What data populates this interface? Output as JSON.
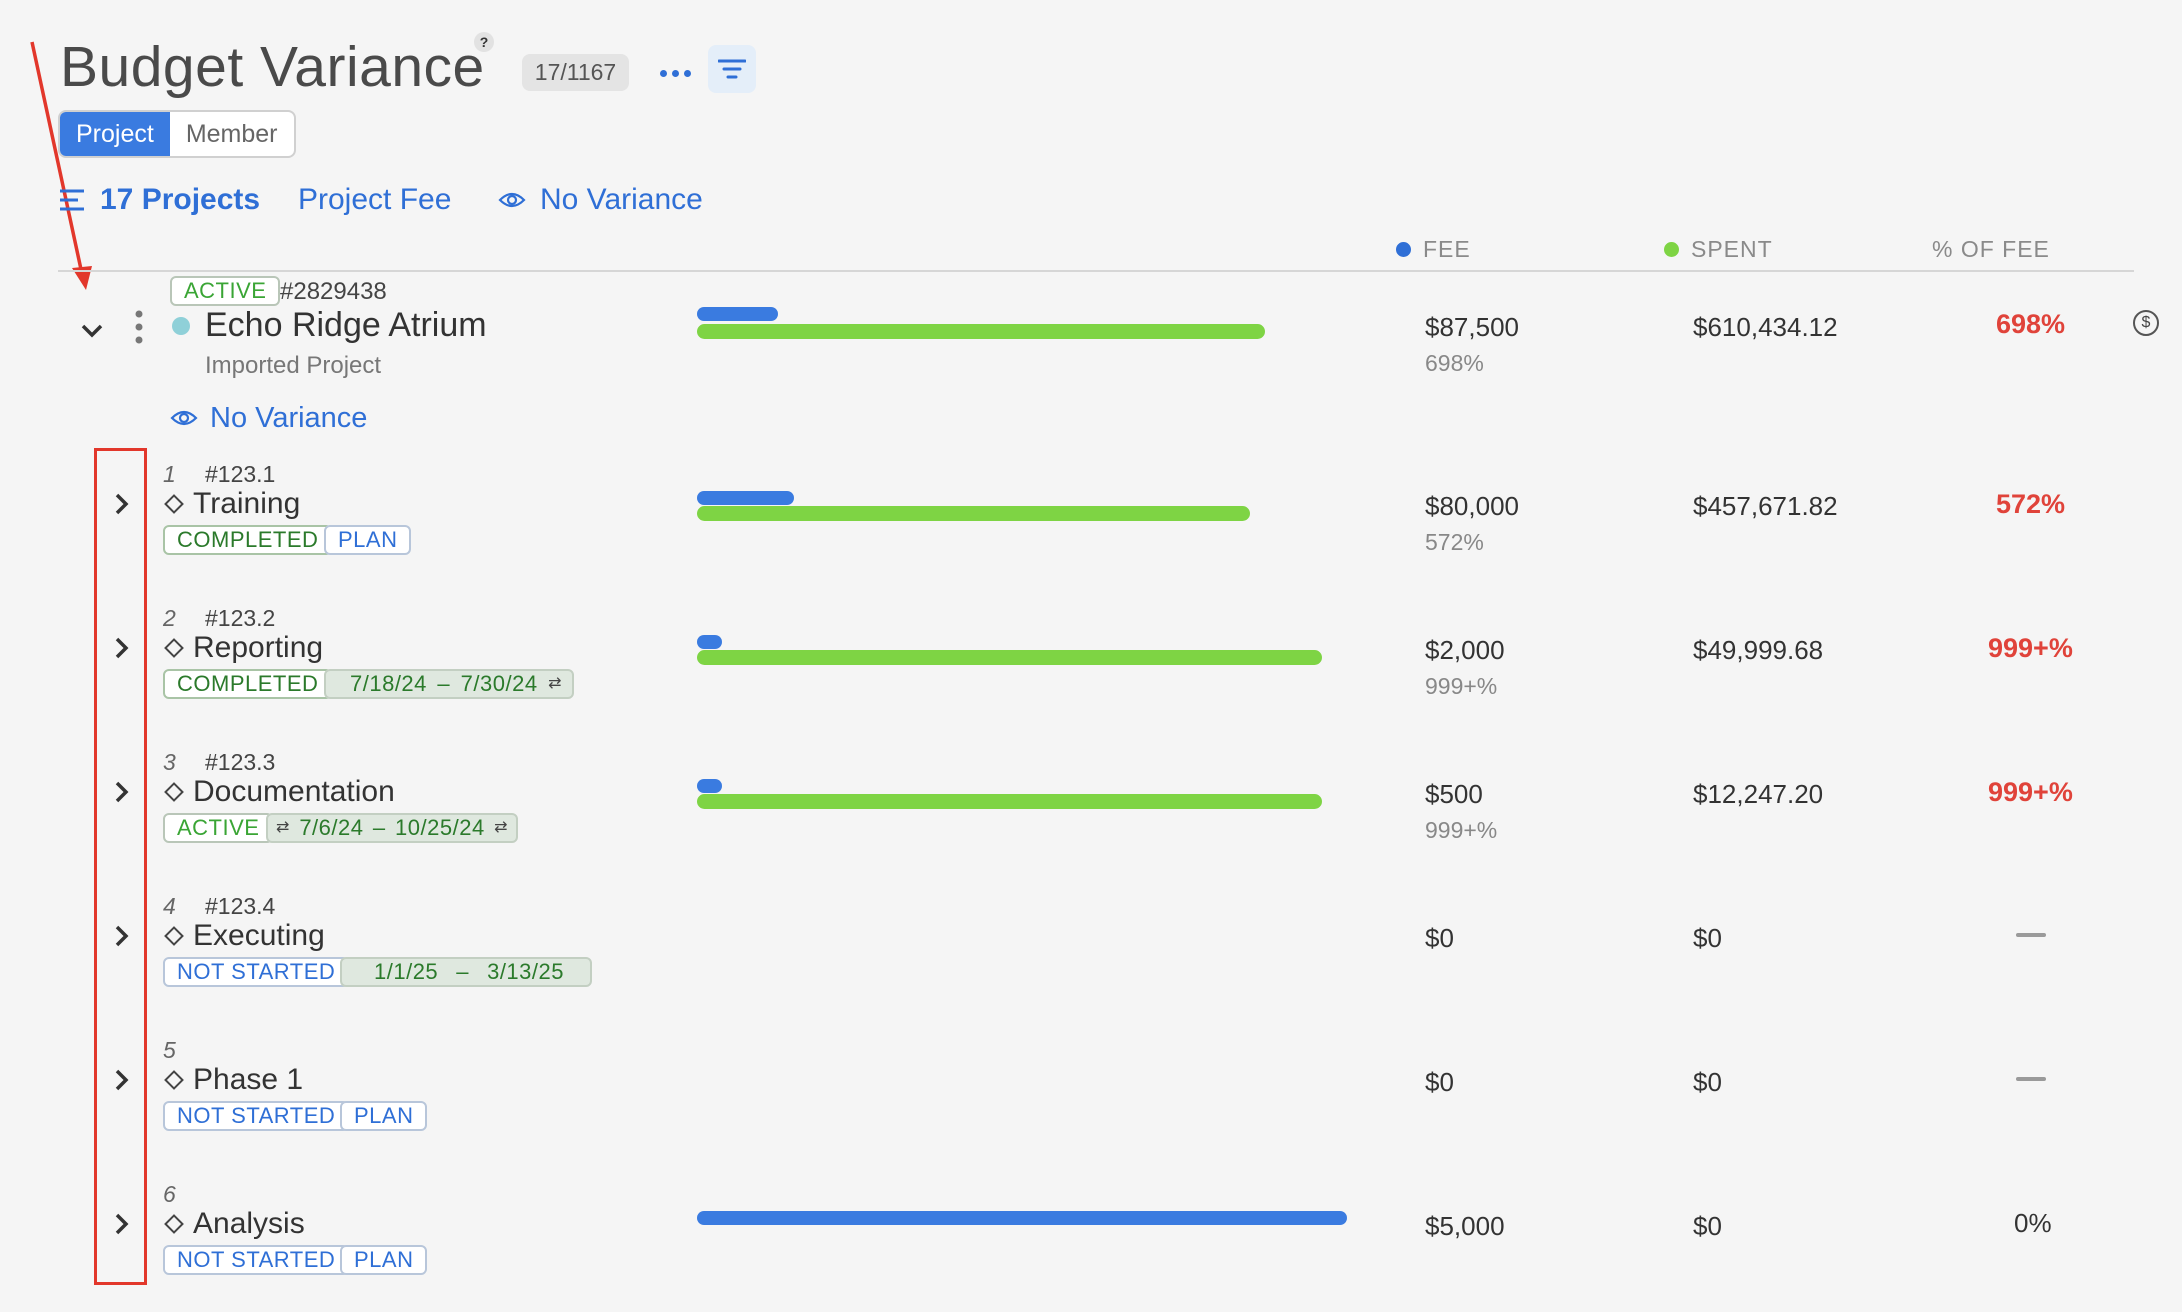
{
  "header": {
    "title": "Budget Variance",
    "help": "?",
    "count": "17/1167"
  },
  "toggle": {
    "project": "Project",
    "member": "Member"
  },
  "subbar": {
    "projects": "17 Projects",
    "fee": "Project Fee",
    "variance": "No Variance"
  },
  "columns": {
    "fee": "FEE",
    "spent": "SPENT",
    "pct": "% OF FEE"
  },
  "colors": {
    "fee_dot": "#2f6fd6",
    "spent_dot": "#7ed444",
    "accent": "#3a7be0",
    "alert": "#e0433a",
    "annotation": "#e2372b"
  },
  "project": {
    "status": "ACTIVE",
    "id": "#2829438",
    "name": "Echo Ridge Atrium",
    "subtitle": "Imported Project",
    "variance": "No Variance",
    "fee": "$87,500",
    "fee_pct": "698%",
    "spent": "$610,434.12",
    "pct_of_fee": "698%",
    "bar": {
      "fee": 87500,
      "spent": 610434.12
    }
  },
  "phases": [
    {
      "num": "1",
      "code": "#123.1",
      "name": "Training",
      "status": "COMPLETED",
      "tag": "PLAN",
      "fee": "$80,000",
      "fee_pct": "572%",
      "spent": "$457,671.82",
      "pct": "572%"
    },
    {
      "num": "2",
      "code": "#123.2",
      "name": "Reporting",
      "status": "COMPLETED",
      "dates_start": "7/18/24",
      "dates_sep": "–",
      "dates_end": "7/30/24",
      "fee": "$2,000",
      "fee_pct": "999+%",
      "spent": "$49,999.68",
      "pct": "999+%"
    },
    {
      "num": "3",
      "code": "#123.3",
      "name": "Documentation",
      "status": "ACTIVE",
      "dates_start": "7/6/24",
      "dates_sep": "–",
      "dates_end": "10/25/24",
      "fee": "$500",
      "fee_pct": "999+%",
      "spent": "$12,247.20",
      "pct": "999+%"
    },
    {
      "num": "4",
      "code": "#123.4",
      "name": "Executing",
      "status": "NOT STARTED",
      "dates_start": "1/1/25",
      "dates_sep": "–",
      "dates_end": "3/13/25",
      "fee": "$0",
      "spent": "$0",
      "pct": "—"
    },
    {
      "num": "5",
      "code": "",
      "name": "Phase 1",
      "status": "NOT STARTED",
      "tag": "PLAN",
      "fee": "$0",
      "spent": "$0",
      "pct": "—"
    },
    {
      "num": "6",
      "code": "",
      "name": "Analysis",
      "status": "NOT STARTED",
      "tag": "PLAN",
      "fee": "$5,000",
      "spent": "$0",
      "pct": "0%"
    }
  ]
}
